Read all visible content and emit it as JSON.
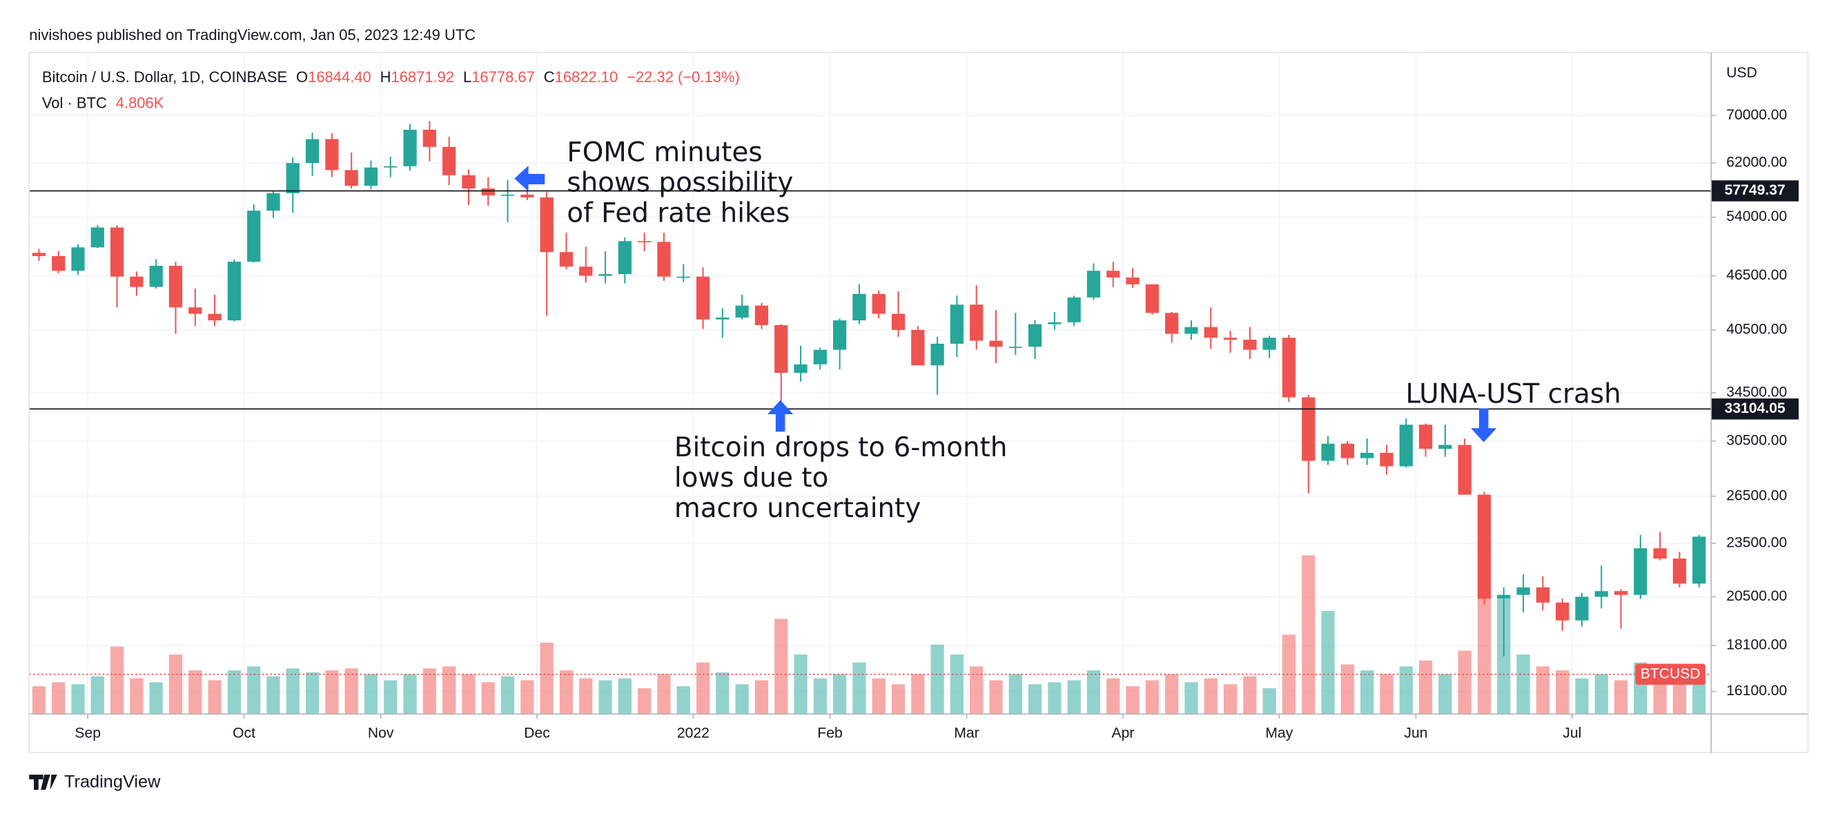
{
  "header": {
    "publisher": "nivishoes published on TradingView.com, Jan 05, 2023 12:49 UTC"
  },
  "chart_data": {
    "type": "candlestick",
    "symbol": "Bitcoin / U.S. Dollar, 1D, COINBASE",
    "ohlc_legend": [
      {
        "key": "O",
        "value": "16844.40"
      },
      {
        "key": "H",
        "value": "16871.92"
      },
      {
        "key": "L",
        "value": "16778.67"
      },
      {
        "key": "C",
        "value": "16822.10"
      }
    ],
    "change": "−22.32 (−0.13%)",
    "volume_legend": {
      "name": "Vol · BTC",
      "value": "4.806K"
    },
    "currency": "USD",
    "categories": [
      null,
      null,
      null,
      "Sep",
      null,
      null,
      null,
      null,
      null,
      null,
      null,
      "Oct",
      null,
      null,
      null,
      null,
      null,
      null,
      "Nov",
      null,
      null,
      null,
      null,
      null,
      null,
      null,
      "Dec",
      null,
      null,
      null,
      null,
      null,
      null,
      null,
      "2022",
      null,
      null,
      null,
      null,
      null,
      null,
      "Feb",
      null,
      null,
      null,
      null,
      null,
      null,
      "Mar",
      null,
      null,
      null,
      null,
      null,
      null,
      null,
      "Apr",
      null,
      null,
      null,
      null,
      null,
      null,
      null,
      "May",
      null,
      null,
      null,
      null,
      null,
      null,
      "Jun",
      null,
      null,
      null,
      null,
      null,
      null,
      null,
      "Jul",
      null,
      null,
      null,
      null,
      null,
      null
    ],
    "open": [
      49300,
      48900,
      47100,
      50000,
      52600,
      46400,
      45200,
      47700,
      42900,
      42200,
      41500,
      48200,
      54900,
      57400,
      62000,
      65900,
      60900,
      58500,
      61300,
      61500,
      67500,
      64600,
      60100,
      58100,
      57100,
      57200,
      56800,
      49400,
      47600,
      46500,
      46700,
      50800,
      50700,
      46400,
      46400,
      41600,
      41800,
      43100,
      41000,
      36300,
      37100,
      38500,
      41500,
      44400,
      42200,
      40500,
      37000,
      39100,
      43200,
      39400,
      38800,
      38800,
      41100,
      41300,
      44000,
      47100,
      46300,
      45500,
      42300,
      40100,
      40800,
      39700,
      39500,
      38500,
      39700,
      34100,
      29000,
      30300,
      29200,
      29600,
      28600,
      31800,
      29900,
      30200,
      26600,
      20400,
      20600,
      21000,
      20200,
      19300,
      20500,
      20800,
      20600,
      23200,
      22600,
      21200
    ],
    "high": [
      49800,
      49500,
      50400,
      52900,
      52900,
      47000,
      48500,
      48200,
      45000,
      44300,
      48500,
      55800,
      57800,
      62900,
      67000,
      66900,
      63700,
      62400,
      63000,
      68500,
      69000,
      66300,
      61000,
      59800,
      59400,
      59200,
      57600,
      51900,
      50100,
      49500,
      51300,
      51900,
      51900,
      47900,
      47500,
      42800,
      44300,
      43400,
      41100,
      38900,
      38700,
      41700,
      45500,
      44800,
      44700,
      40900,
      39800,
      44200,
      45400,
      42600,
      42300,
      41500,
      42400,
      44200,
      48000,
      48200,
      47400,
      45500,
      42400,
      41500,
      42900,
      40400,
      40800,
      39900,
      40000,
      34300,
      30900,
      30500,
      30700,
      30200,
      32300,
      31900,
      31800,
      30700,
      26800,
      21000,
      21700,
      21600,
      20400,
      20700,
      22200,
      20900,
      24000,
      24200,
      23000,
      24000
    ],
    "low": [
      48300,
      46800,
      46600,
      49900,
      42900,
      44200,
      45000,
      40100,
      40900,
      40900,
      41400,
      48100,
      53900,
      54600,
      60000,
      59800,
      58100,
      58000,
      59800,
      60800,
      62300,
      58600,
      55700,
      55600,
      53300,
      56400,
      42000,
      47300,
      45700,
      45600,
      45600,
      49500,
      45900,
      45800,
      40600,
      39700,
      41600,
      40600,
      33100,
      35500,
      36600,
      36600,
      41100,
      41700,
      39800,
      37000,
      34300,
      37800,
      38500,
      37200,
      38000,
      37600,
      40500,
      40900,
      43700,
      45200,
      45100,
      42100,
      39200,
      39500,
      38600,
      38200,
      37600,
      37700,
      33700,
      26700,
      28700,
      28700,
      28700,
      28000,
      28500,
      29300,
      29300,
      26600,
      20100,
      17600,
      19700,
      19800,
      18800,
      19000,
      19900,
      18900,
      20400,
      22500,
      21000,
      21000
    ],
    "close": [
      48900,
      47100,
      50000,
      52600,
      46400,
      45200,
      47700,
      42900,
      42200,
      41500,
      48200,
      54900,
      57400,
      62000,
      65900,
      60900,
      58500,
      61300,
      61500,
      67500,
      64600,
      60100,
      58100,
      57100,
      57200,
      56800,
      49400,
      47600,
      46500,
      46700,
      50800,
      50700,
      46400,
      46400,
      41600,
      41800,
      43100,
      41000,
      36300,
      37100,
      38500,
      41500,
      44400,
      42200,
      40500,
      37000,
      39100,
      43200,
      39400,
      38800,
      38800,
      41100,
      41300,
      44000,
      47100,
      46300,
      45500,
      42300,
      40100,
      40800,
      39700,
      39500,
      38500,
      39700,
      34100,
      29000,
      30300,
      29200,
      29600,
      28600,
      31800,
      29900,
      30200,
      26600,
      20400,
      20600,
      21000,
      20200,
      19300,
      20500,
      20800,
      20600,
      23200,
      22600,
      21200,
      23900
    ],
    "volume": [
      14000,
      16000,
      15000,
      19000,
      34000,
      18000,
      16000,
      30000,
      22000,
      17000,
      22000,
      24000,
      19000,
      23000,
      21000,
      22000,
      23000,
      20000,
      17000,
      20000,
      23000,
      24000,
      20000,
      16000,
      19000,
      17000,
      36000,
      22000,
      18000,
      17000,
      18000,
      13000,
      20000,
      14000,
      26000,
      21000,
      15000,
      17000,
      48000,
      30000,
      18000,
      20000,
      26000,
      18000,
      15000,
      20000,
      35000,
      30000,
      24000,
      17000,
      20000,
      15000,
      16000,
      17000,
      22000,
      18000,
      14000,
      17000,
      20000,
      16000,
      18000,
      15000,
      19000,
      13000,
      40000,
      80000,
      52000,
      25000,
      22000,
      20000,
      24000,
      27000,
      20000,
      32000,
      80000,
      58000,
      30000,
      24000,
      22000,
      18000,
      20000,
      17000,
      26000,
      20000,
      18000,
      22000
    ],
    "up_color": "#26a69a",
    "down_color": "#ef5350",
    "log_y": true,
    "ylim": [
      15200,
      82200
    ],
    "yticks": [
      {
        "value": 70000,
        "label": "70000.00"
      },
      {
        "value": 62000,
        "label": "62000.00"
      },
      {
        "value": 54000,
        "label": "54000.00"
      },
      {
        "value": 46500,
        "label": "46500.00"
      },
      {
        "value": 40500,
        "label": "40500.00"
      },
      {
        "value": 34500,
        "label": "34500.00"
      },
      {
        "value": 30500,
        "label": "30500.00"
      },
      {
        "value": 26500,
        "label": "26500.00"
      },
      {
        "value": 23500,
        "label": "23500.00"
      },
      {
        "value": 20500,
        "label": "20500.00"
      },
      {
        "value": 18100,
        "label": "18100.00"
      },
      {
        "value": 16100,
        "label": "16100.00"
      }
    ],
    "vlim": [
      0,
      100000
    ],
    "grid": true,
    "horizontal_lines": [
      {
        "value": 57749.37,
        "label": "57749.37"
      },
      {
        "value": 33104.05,
        "label": "33104.05"
      }
    ],
    "last_price": {
      "value": 16822.1,
      "label": "BTCUSD"
    },
    "annotations": [
      {
        "lines": [
          "FOMC minutes",
          "shows possibility",
          "of Fed rate hikes"
        ]
      },
      {
        "lines": [
          "Bitcoin drops to 6-month",
          "lows due to",
          "macro uncertainty"
        ]
      },
      {
        "lines": [
          "LUNA-UST crash"
        ]
      }
    ]
  },
  "footer": {
    "brand": "TradingView"
  }
}
